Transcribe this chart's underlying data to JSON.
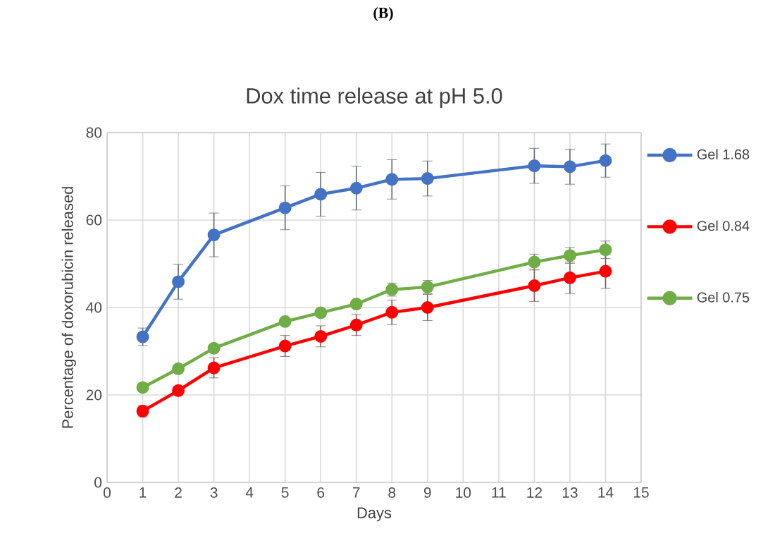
{
  "chart_data": {
    "type": "line",
    "title": "Dox time release at pH 5.0",
    "annotations": [
      "(B)"
    ],
    "xlabel": "Days",
    "ylabel": "Percentage of doxorubicin released",
    "x": [
      1,
      2,
      3,
      5,
      6,
      7,
      8,
      9,
      12,
      13,
      14
    ],
    "xlim": [
      0,
      15
    ],
    "xticks": [
      0,
      1,
      2,
      3,
      4,
      5,
      6,
      7,
      8,
      9,
      10,
      11,
      12,
      13,
      14,
      15
    ],
    "ylim": [
      0,
      80
    ],
    "yticks": [
      0,
      20,
      40,
      60,
      80
    ],
    "grid": true,
    "legend": "right",
    "marker": "circle",
    "line_style": "solid",
    "series": [
      {
        "name": "Gel 1.68",
        "color": "#4472c4",
        "values": [
          33.3,
          45.9,
          56.6,
          62.8,
          65.9,
          67.3,
          69.3,
          69.5,
          72.4,
          72.2,
          73.6
        ],
        "errors": [
          2,
          4,
          5,
          5,
          5,
          5,
          4.5,
          4,
          4,
          4,
          3.8
        ]
      },
      {
        "name": "Gel 0.84",
        "color": "#ff0000",
        "values": [
          16.3,
          21,
          26.2,
          31.2,
          33.4,
          36,
          38.9,
          40,
          45,
          46.8,
          48.3
        ],
        "errors": [
          1.3,
          null,
          2.3,
          2.4,
          2.4,
          2.4,
          2.8,
          3,
          3.6,
          3.6,
          3.9
        ]
      },
      {
        "name": "Gel 0.75",
        "color": "#70ad47",
        "values": [
          21.7,
          26,
          30.7,
          36.8,
          38.8,
          40.8,
          44.1,
          44.7,
          50.4,
          51.9,
          53.2
        ],
        "errors": [
          null,
          null,
          null,
          null,
          null,
          null,
          1.5,
          1.5,
          1.8,
          1.8,
          2
        ]
      }
    ]
  }
}
